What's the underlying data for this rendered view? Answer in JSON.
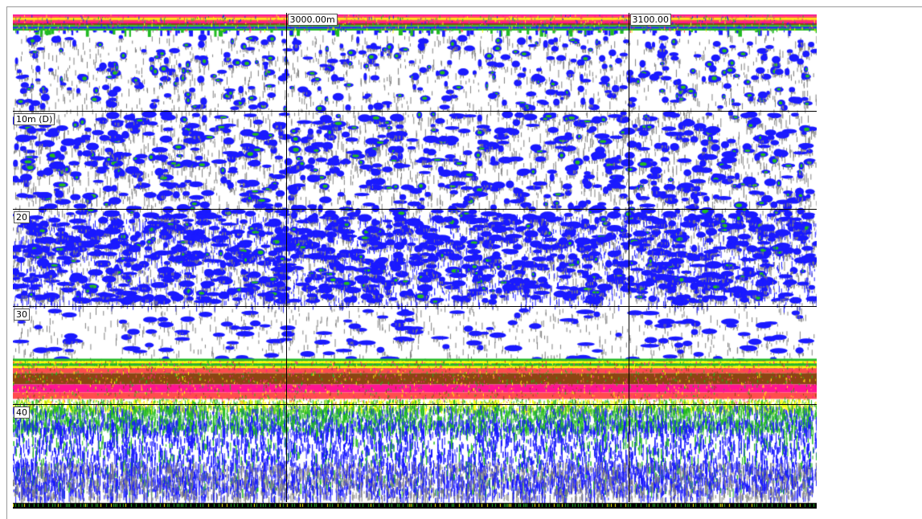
{
  "chart_data": {
    "type": "heatmap",
    "title": "",
    "xlabel": "",
    "ylabel": "",
    "x_ticks": [
      {
        "label": "3000.00m",
        "value": 3000
      },
      {
        "label": "3100.00",
        "value": 3100
      }
    ],
    "x_range": [
      2920,
      3155
    ],
    "y_ticks": [
      {
        "label": "10m (D)",
        "value": 10
      },
      {
        "label": "20",
        "value": 20
      },
      {
        "label": "30",
        "value": 30
      },
      {
        "label": "40",
        "value": 40
      }
    ],
    "y_range": [
      0,
      50
    ],
    "grid": true,
    "seabed_depth": 36,
    "colormap": [
      "#808080",
      "#1a1aff",
      "#22bb22",
      "#ffff00",
      "#ff4d4d",
      "#ff1493",
      "#8b4513"
    ]
  }
}
